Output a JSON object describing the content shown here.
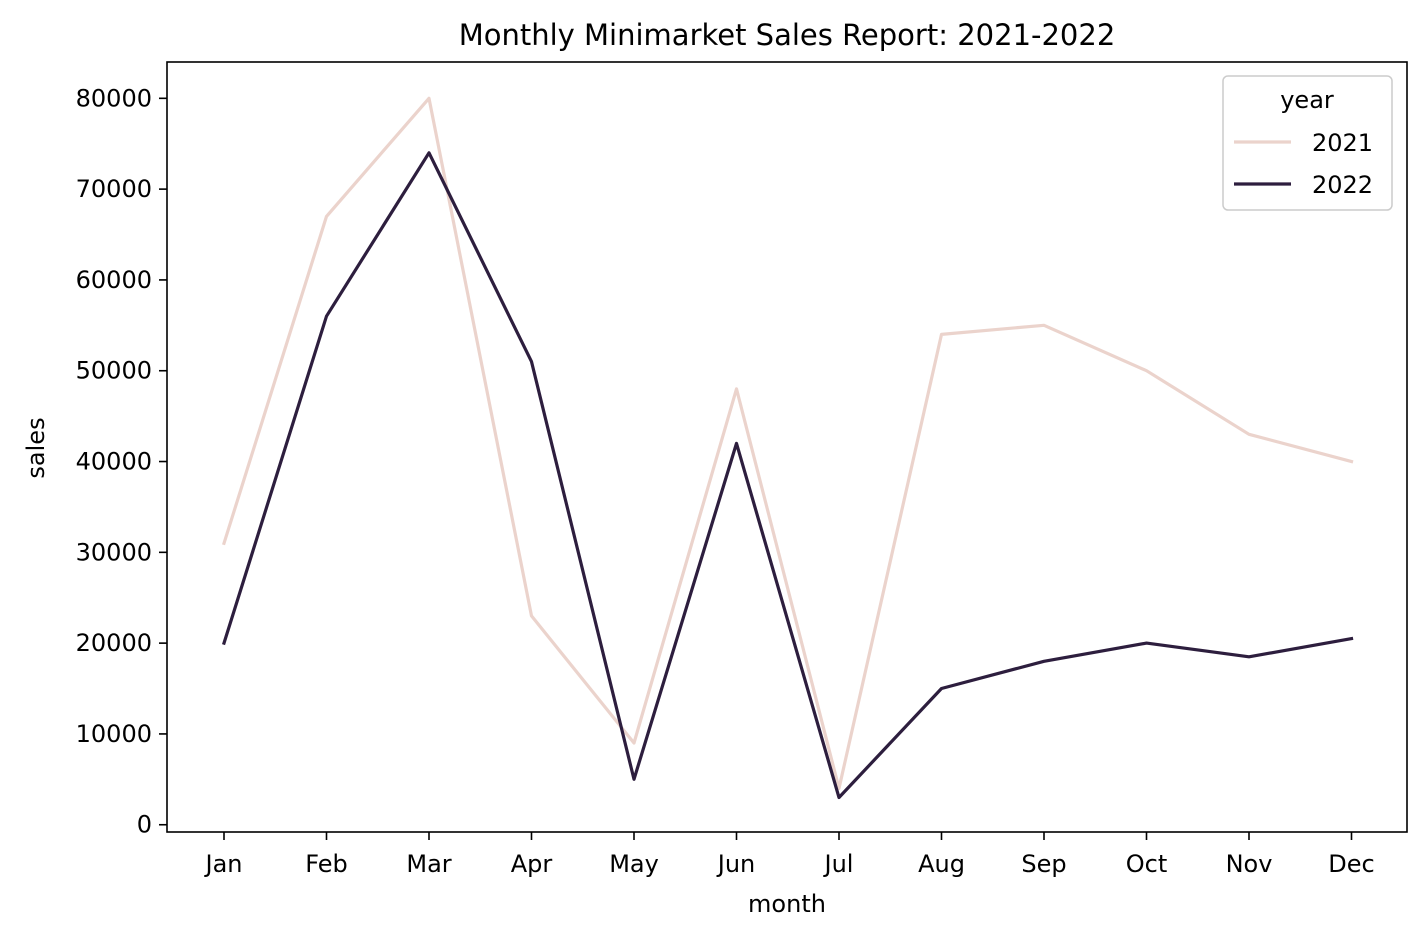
{
  "chart_data": {
    "type": "line",
    "title": "Monthly Minimarket Sales Report: 2021-2022",
    "xlabel": "month",
    "ylabel": "sales",
    "categories": [
      "Jan",
      "Feb",
      "Mar",
      "Apr",
      "May",
      "Jun",
      "Jul",
      "Aug",
      "Sep",
      "Oct",
      "Nov",
      "Dec"
    ],
    "ylim": [
      -800,
      84000
    ],
    "yticks": [
      0,
      10000,
      20000,
      30000,
      40000,
      50000,
      60000,
      70000,
      80000
    ],
    "ytick_labels": [
      "0",
      "10000",
      "20000",
      "30000",
      "40000",
      "50000",
      "60000",
      "70000",
      "80000"
    ],
    "grid": false,
    "legend": {
      "title": "year",
      "placement": "top-right"
    },
    "series": [
      {
        "name": "2021",
        "color": "#ebd3cc",
        "values": [
          31000,
          67000,
          80000,
          23000,
          9000,
          48000,
          4000,
          54000,
          55000,
          50000,
          43000,
          40000
        ]
      },
      {
        "name": "2022",
        "color": "#2d1e3e",
        "values": [
          20000,
          56000,
          74000,
          51000,
          5000,
          42000,
          3000,
          15000,
          18000,
          20000,
          18500,
          20500
        ]
      }
    ]
  }
}
